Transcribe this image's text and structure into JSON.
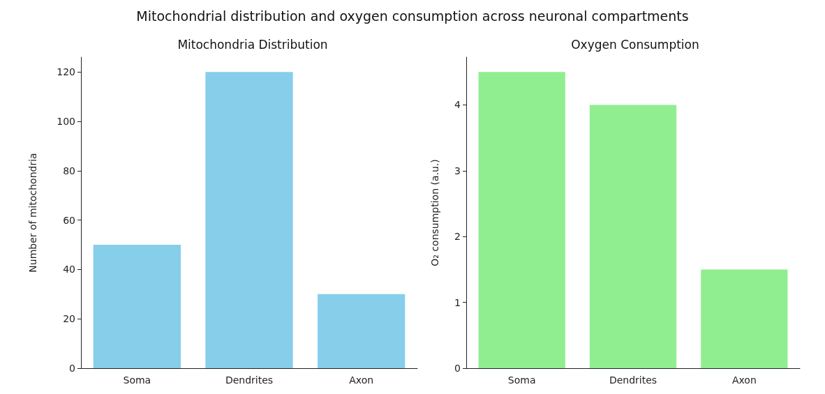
{
  "chart_data": [
    {
      "type": "bar",
      "title": "Mitochondria Distribution",
      "annotations": [
        "Mitochondrial distribution and oxygen consumption across neuronal compartments"
      ],
      "ylabel": "Number of mitochondria",
      "categories": [
        "Soma",
        "Dendrites",
        "Axon"
      ],
      "values": [
        50,
        120,
        30
      ],
      "color": "#87ceeb",
      "ylim": [
        0,
        126
      ],
      "yticks": [
        0,
        20,
        40,
        60,
        80,
        100,
        120
      ]
    },
    {
      "type": "bar",
      "title": "Oxygen Consumption",
      "ylabel": "O₂ consumption (a.u.)",
      "categories": [
        "Soma",
        "Dendrites",
        "Axon"
      ],
      "values": [
        4.5,
        4.0,
        1.5
      ],
      "color": "#90ee90",
      "ylim": [
        0,
        4.725
      ],
      "yticks": [
        0,
        1,
        2,
        3,
        4
      ]
    }
  ]
}
